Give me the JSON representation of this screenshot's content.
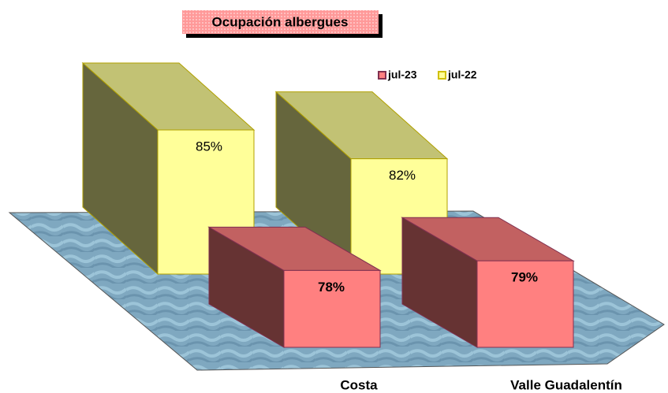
{
  "chart_data": {
    "type": "bar3d",
    "title": "Ocupación albergues",
    "categories": [
      "Costa",
      "Valle Guadalentín"
    ],
    "series": [
      {
        "name": "jul-23",
        "color": "#ff8080",
        "values": [
          78,
          79
        ],
        "value_labels": [
          "78%",
          "79%"
        ]
      },
      {
        "name": "jul-22",
        "color": "#ffff99",
        "values": [
          85,
          82
        ],
        "value_labels": [
          "85%",
          "82%"
        ]
      }
    ],
    "ylim": [
      70,
      90
    ],
    "legend": "top-right"
  }
}
